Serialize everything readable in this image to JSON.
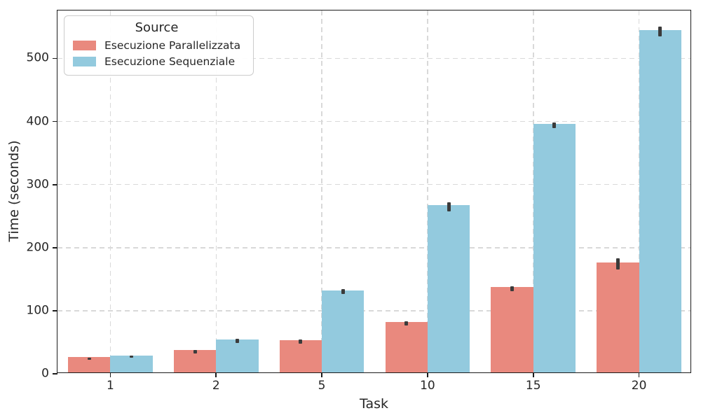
{
  "chart_data": {
    "type": "bar",
    "title": "",
    "xlabel": "Task",
    "ylabel": "Time (seconds)",
    "categories": [
      "1",
      "2",
      "5",
      "10",
      "15",
      "20"
    ],
    "series": [
      {
        "name": "Esecuzione Parallelizzata",
        "color": "#E9897E",
        "values": [
          24,
          35,
          51,
          80,
          135,
          174
        ],
        "errors": [
          1.5,
          2.5,
          3,
          3,
          3.5,
          9
        ]
      },
      {
        "name": "Esecuzione Sequenziale",
        "color": "#93CADE",
        "values": [
          27,
          52,
          130,
          265,
          394,
          543
        ],
        "errors": [
          1.5,
          3,
          4,
          7,
          4,
          8
        ]
      }
    ],
    "ylim": [
      0,
      576
    ],
    "yticks": [
      0,
      100,
      200,
      300,
      400,
      500
    ],
    "grid": true,
    "legend_title": "Source",
    "legend_position": "upper left",
    "bar_group_width_fraction": 0.8
  },
  "colors": {
    "background": "#ffffff",
    "grid": "#d9d9d9",
    "spine": "#1c1c1c",
    "error_bar": "#3b3b3b",
    "text": "#262626"
  }
}
